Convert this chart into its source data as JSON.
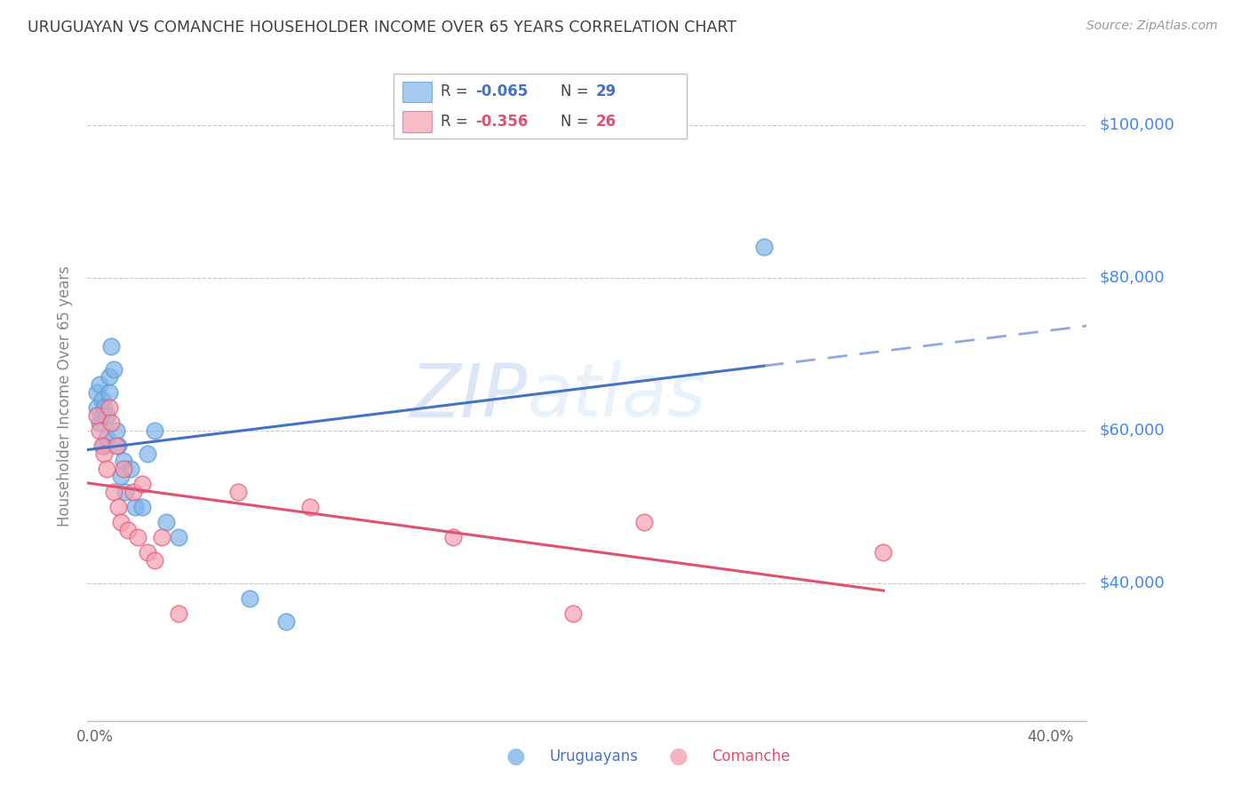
{
  "title": "URUGUAYAN VS COMANCHE HOUSEHOLDER INCOME OVER 65 YEARS CORRELATION CHART",
  "source": "Source: ZipAtlas.com",
  "ylabel": "Householder Income Over 65 years",
  "xlabel_ticks": [
    "0.0%",
    "",
    "",
    "",
    "",
    "",
    "",
    "",
    "40.0%"
  ],
  "xlabel_vals": [
    0.0,
    0.05,
    0.1,
    0.15,
    0.2,
    0.25,
    0.3,
    0.35,
    0.4
  ],
  "ytick_labels": [
    "$40,000",
    "$60,000",
    "$80,000",
    "$100,000"
  ],
  "ytick_vals": [
    40000,
    60000,
    80000,
    100000
  ],
  "ymin": 22000,
  "ymax": 107000,
  "xmin": -0.003,
  "xmax": 0.415,
  "uruguayan_color": "#7EB4EA",
  "comanche_color": "#F4A0B0",
  "uruguayan_edge_color": "#5B9BD5",
  "comanche_edge_color": "#E06080",
  "uruguayan_line_color": "#4472C4",
  "comanche_line_color": "#E05070",
  "uruguayan_x": [
    0.001,
    0.001,
    0.002,
    0.002,
    0.003,
    0.003,
    0.004,
    0.004,
    0.005,
    0.005,
    0.006,
    0.006,
    0.007,
    0.008,
    0.009,
    0.01,
    0.011,
    0.012,
    0.013,
    0.015,
    0.017,
    0.02,
    0.022,
    0.025,
    0.03,
    0.035,
    0.065,
    0.08,
    0.28
  ],
  "uruguayan_y": [
    63000,
    65000,
    61000,
    66000,
    62000,
    64000,
    58000,
    63000,
    59000,
    62000,
    65000,
    67000,
    71000,
    68000,
    60000,
    58000,
    54000,
    56000,
    52000,
    55000,
    50000,
    50000,
    57000,
    60000,
    48000,
    46000,
    38000,
    35000,
    84000
  ],
  "comanche_x": [
    0.001,
    0.002,
    0.003,
    0.004,
    0.005,
    0.006,
    0.007,
    0.008,
    0.009,
    0.01,
    0.011,
    0.012,
    0.014,
    0.016,
    0.018,
    0.02,
    0.022,
    0.025,
    0.028,
    0.035,
    0.06,
    0.09,
    0.15,
    0.2,
    0.23,
    0.33
  ],
  "comanche_y": [
    62000,
    60000,
    58000,
    57000,
    55000,
    63000,
    61000,
    52000,
    58000,
    50000,
    48000,
    55000,
    47000,
    52000,
    46000,
    53000,
    44000,
    43000,
    46000,
    36000,
    52000,
    50000,
    46000,
    36000,
    48000,
    44000
  ],
  "watermark_zip": "ZIP",
  "watermark_atlas": "atlas",
  "background_color": "#ffffff",
  "grid_color": "#c8c8c8",
  "title_color": "#404040",
  "right_label_color": "#4488ee",
  "axis_color": "#c0c0c0"
}
